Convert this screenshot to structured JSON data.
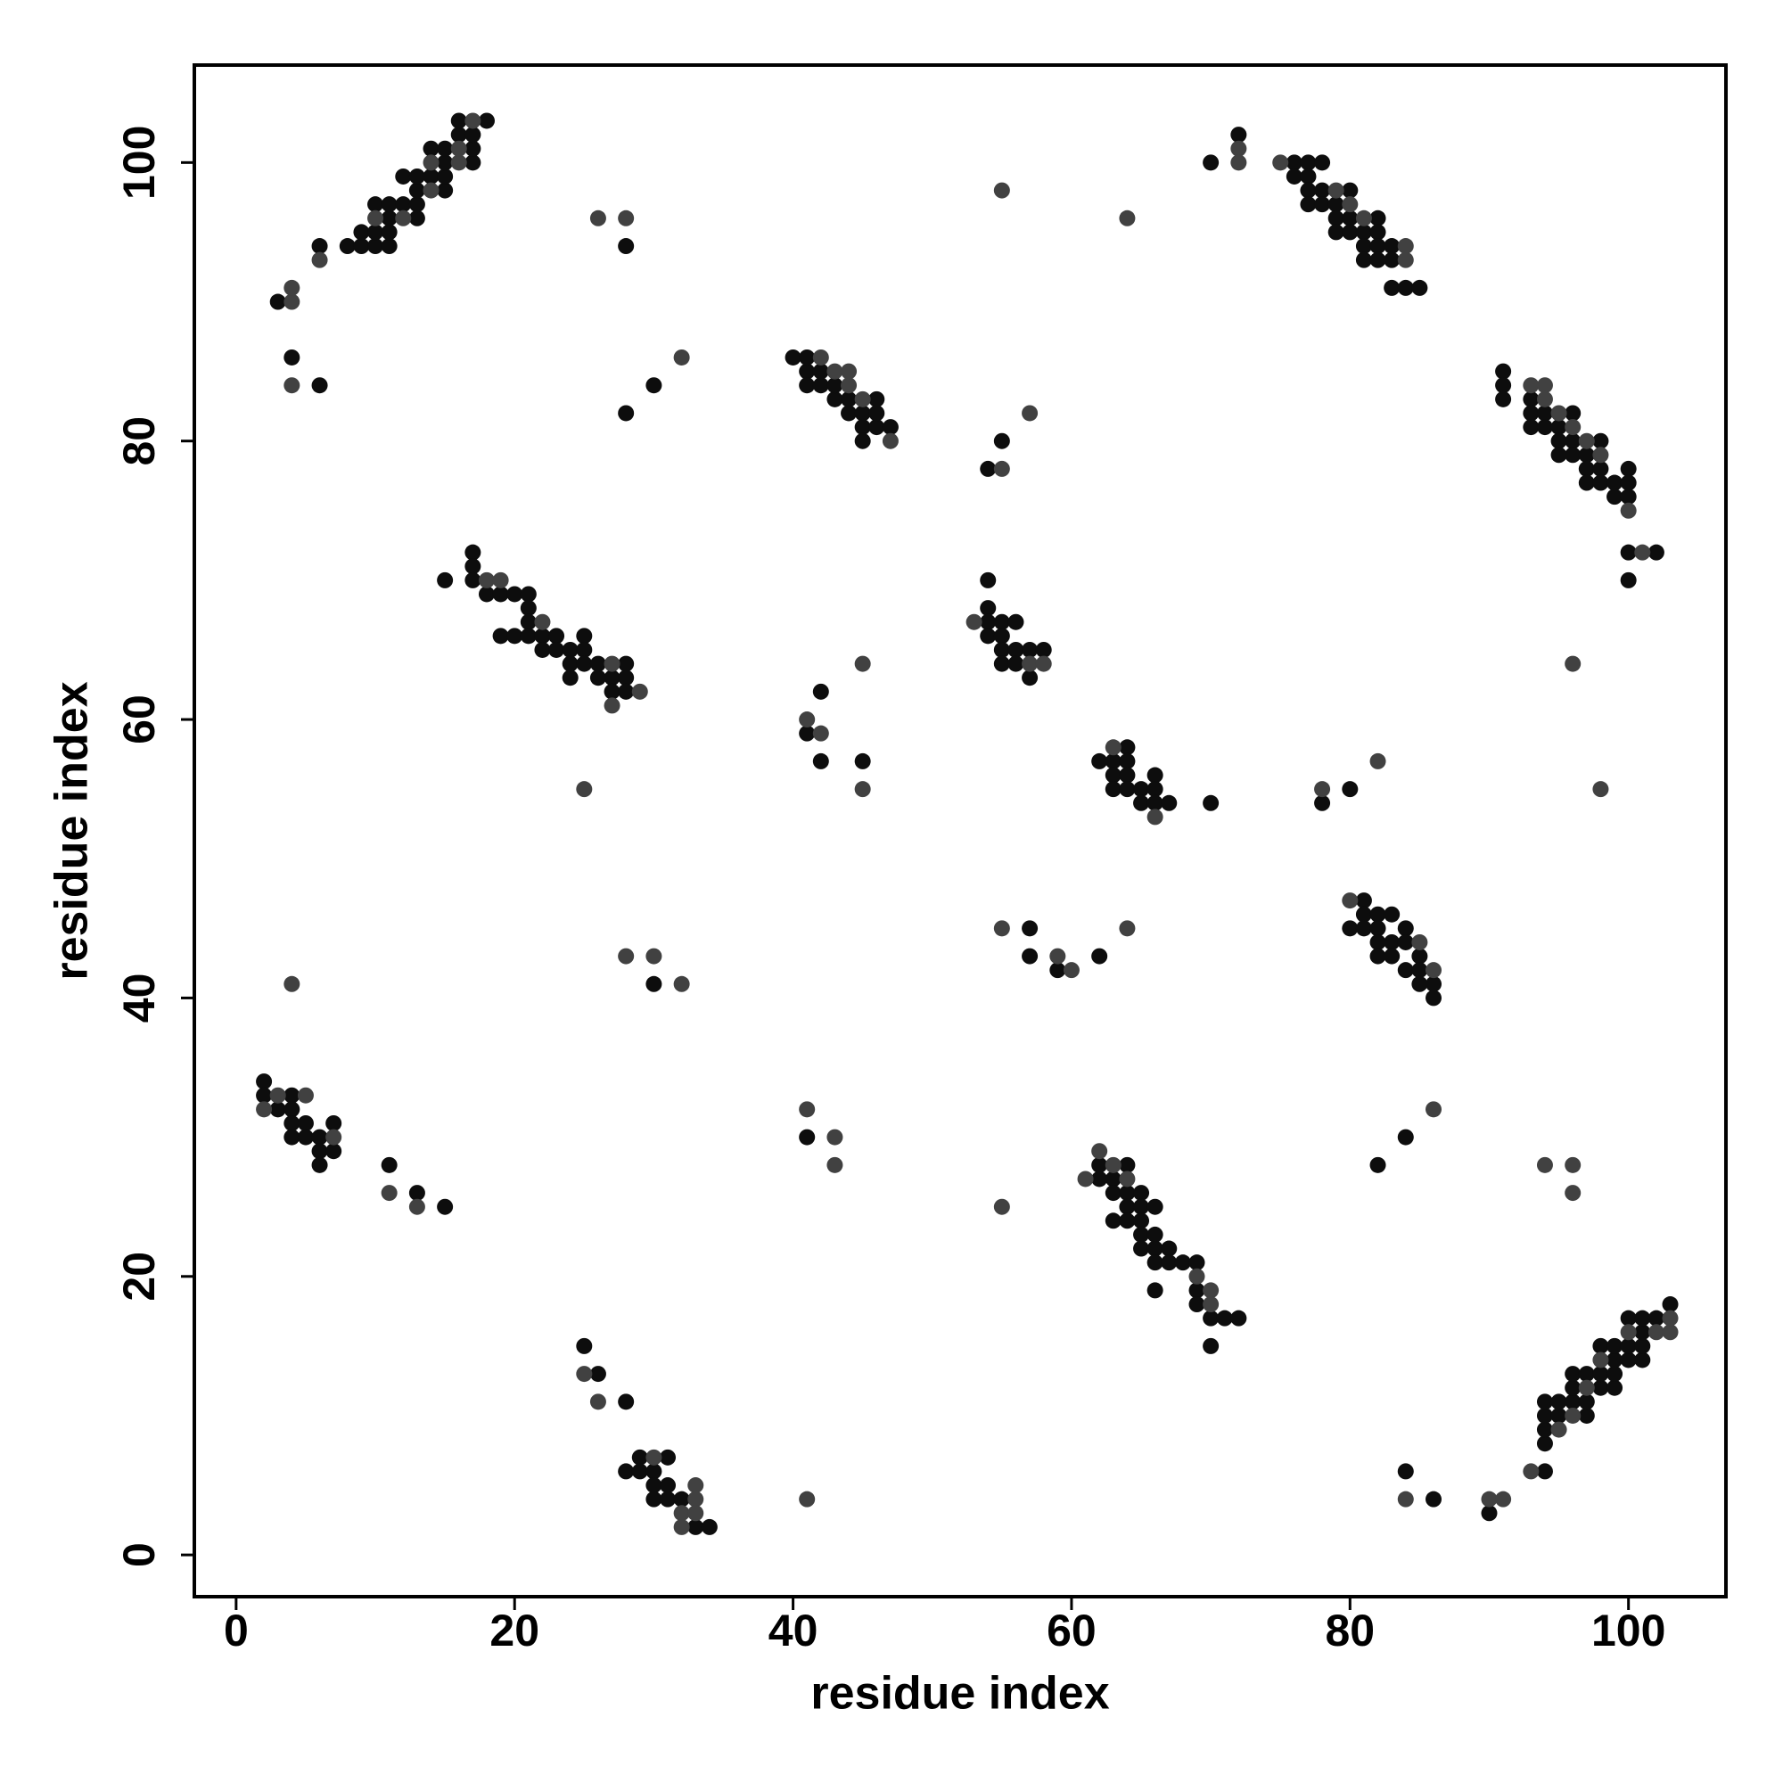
{
  "chart_data": {
    "type": "scatter",
    "x_label": "residue index",
    "y_label": "residue index",
    "xlim": [
      -3,
      107
    ],
    "ylim": [
      -3,
      107
    ],
    "xticks": [
      0,
      20,
      40,
      60,
      80,
      100
    ],
    "yticks": [
      0,
      20,
      40,
      60,
      80,
      100
    ],
    "series": [
      {
        "color": "#0d0d0d",
        "x": [
          3,
          6,
          8,
          9,
          9,
          10,
          10,
          10,
          11,
          11,
          11,
          11,
          12,
          12,
          13,
          13,
          13,
          13,
          14,
          14,
          15,
          15,
          15,
          15,
          16,
          16,
          17,
          17,
          17,
          18,
          4,
          6,
          28,
          28,
          30,
          40,
          41,
          41,
          41,
          42,
          42,
          43,
          43,
          44,
          44,
          45,
          45,
          46,
          46,
          46,
          45,
          47,
          55,
          54,
          70,
          72,
          76,
          76,
          77,
          77,
          77,
          77,
          78,
          78,
          78,
          79,
          79,
          79,
          80,
          80,
          80,
          81,
          81,
          81,
          82,
          82,
          82,
          82,
          83,
          83,
          83,
          84,
          85,
          91,
          91,
          91,
          93,
          93,
          93,
          94,
          94,
          95,
          95,
          95,
          96,
          96,
          96,
          97,
          97,
          97,
          98,
          98,
          98,
          99,
          99,
          100,
          100,
          100,
          100,
          100,
          102,
          15,
          17,
          17,
          17,
          18,
          19,
          19,
          20,
          20,
          21,
          21,
          21,
          21,
          22,
          22,
          23,
          23,
          24,
          24,
          24,
          25,
          25,
          25,
          26,
          26,
          27,
          27,
          28,
          28,
          28,
          41,
          42,
          42,
          45,
          54,
          54,
          54,
          54,
          55,
          55,
          55,
          55,
          56,
          56,
          56,
          57,
          57,
          58,
          62,
          63,
          63,
          63,
          64,
          64,
          64,
          64,
          65,
          65,
          66,
          66,
          66,
          67,
          70,
          78,
          80,
          80,
          81,
          81,
          81,
          82,
          82,
          82,
          82,
          83,
          83,
          83,
          84,
          84,
          84,
          85,
          85,
          85,
          86,
          86,
          57,
          57,
          59,
          62,
          30,
          2,
          2,
          3,
          4,
          4,
          4,
          4,
          5,
          5,
          6,
          6,
          6,
          7,
          7,
          11,
          13,
          15,
          41,
          62,
          62,
          63,
          63,
          63,
          64,
          64,
          64,
          64,
          65,
          65,
          65,
          65,
          65,
          66,
          66,
          66,
          66,
          66,
          67,
          67,
          68,
          69,
          69,
          69,
          70,
          70,
          71,
          72,
          84,
          82,
          94,
          94,
          94,
          94,
          94,
          95,
          95,
          96,
          96,
          96,
          97,
          97,
          97,
          98,
          98,
          98,
          99,
          99,
          99,
          99,
          100,
          100,
          100,
          101,
          101,
          101,
          101,
          102,
          103,
          84,
          86,
          90,
          25,
          26,
          28,
          28,
          29,
          29,
          30,
          30,
          30,
          31,
          31,
          31,
          32,
          33,
          34
        ],
        "values": [
          90,
          94,
          94,
          94,
          95,
          94,
          95,
          97,
          94,
          95,
          96,
          97,
          97,
          99,
          96,
          97,
          98,
          99,
          99,
          101,
          98,
          99,
          100,
          101,
          102,
          103,
          100,
          101,
          102,
          103,
          86,
          84,
          94,
          82,
          84,
          86,
          85,
          86,
          84,
          84,
          85,
          83,
          84,
          82,
          83,
          82,
          81,
          81,
          82,
          83,
          80,
          81,
          80,
          78,
          100,
          102,
          100,
          99,
          100,
          99,
          98,
          97,
          100,
          98,
          97,
          97,
          96,
          95,
          98,
          96,
          95,
          95,
          94,
          93,
          96,
          95,
          94,
          93,
          94,
          93,
          91,
          91,
          91,
          85,
          84,
          83,
          83,
          82,
          81,
          82,
          81,
          81,
          80,
          79,
          82,
          80,
          79,
          79,
          78,
          77,
          80,
          78,
          77,
          77,
          76,
          78,
          77,
          76,
          72,
          70,
          72,
          70,
          72,
          71,
          70,
          69,
          69,
          66,
          69,
          66,
          69,
          68,
          67,
          66,
          66,
          65,
          66,
          65,
          65,
          64,
          63,
          66,
          65,
          64,
          64,
          63,
          63,
          62,
          64,
          63,
          62,
          59,
          62,
          57,
          57,
          70,
          68,
          67,
          66,
          67,
          66,
          65,
          64,
          67,
          65,
          64,
          65,
          63,
          65,
          57,
          57,
          56,
          55,
          58,
          57,
          56,
          55,
          55,
          54,
          56,
          55,
          54,
          54,
          54,
          54,
          55,
          45,
          47,
          46,
          45,
          46,
          45,
          44,
          43,
          46,
          44,
          43,
          45,
          44,
          42,
          43,
          42,
          41,
          41,
          40,
          45,
          43,
          42,
          43,
          41,
          34,
          33,
          32,
          33,
          32,
          31,
          30,
          31,
          30,
          30,
          29,
          28,
          31,
          29,
          28,
          26,
          25,
          30,
          28,
          27,
          27,
          26,
          24,
          28,
          26,
          25,
          24,
          26,
          25,
          24,
          23,
          22,
          25,
          23,
          22,
          21,
          19,
          22,
          21,
          21,
          21,
          19,
          18,
          17,
          15,
          17,
          17,
          30,
          28,
          6,
          8,
          9,
          10,
          11,
          10,
          11,
          11,
          12,
          13,
          10,
          11,
          13,
          12,
          13,
          15,
          12,
          13,
          14,
          15,
          14,
          15,
          17,
          14,
          15,
          16,
          17,
          17,
          18,
          6,
          4,
          3,
          15,
          13,
          11,
          6,
          7,
          6,
          6,
          5,
          4,
          7,
          5,
          4,
          4,
          2,
          2
        ]
      },
      {
        "color": "#414141",
        "x": [
          4,
          4,
          6,
          10,
          12,
          14,
          14,
          16,
          16,
          17,
          4,
          26,
          28,
          32,
          42,
          43,
          44,
          44,
          45,
          47,
          55,
          64,
          55,
          57,
          72,
          72,
          75,
          79,
          80,
          81,
          84,
          84,
          93,
          94,
          94,
          95,
          96,
          97,
          98,
          100,
          101,
          18,
          19,
          22,
          27,
          27,
          29,
          25,
          41,
          42,
          45,
          45,
          53,
          57,
          58,
          96,
          63,
          66,
          78,
          82,
          98,
          80,
          85,
          86,
          55,
          59,
          60,
          64,
          4,
          28,
          30,
          32,
          2,
          3,
          5,
          7,
          11,
          13,
          41,
          43,
          43,
          55,
          61,
          62,
          63,
          64,
          69,
          70,
          70,
          86,
          94,
          96,
          96,
          93,
          95,
          96,
          97,
          98,
          100,
          102,
          103,
          103,
          84,
          90,
          91,
          41,
          25,
          26,
          30,
          32,
          32,
          33,
          33,
          33
        ],
        "values": [
          90,
          91,
          93,
          96,
          96,
          98,
          100,
          100,
          101,
          103,
          84,
          96,
          96,
          86,
          86,
          85,
          84,
          85,
          83,
          80,
          98,
          96,
          78,
          82,
          101,
          100,
          100,
          98,
          97,
          96,
          94,
          93,
          84,
          84,
          83,
          82,
          81,
          80,
          79,
          75,
          72,
          70,
          70,
          67,
          64,
          61,
          62,
          55,
          60,
          59,
          64,
          55,
          67,
          64,
          64,
          64,
          58,
          53,
          55,
          57,
          55,
          47,
          44,
          42,
          45,
          43,
          42,
          45,
          41,
          43,
          43,
          41,
          32,
          33,
          33,
          30,
          26,
          25,
          32,
          30,
          28,
          25,
          27,
          29,
          28,
          27,
          20,
          19,
          18,
          32,
          28,
          28,
          26,
          6,
          9,
          10,
          12,
          14,
          16,
          16,
          16,
          17,
          4,
          4,
          4,
          4,
          13,
          11,
          7,
          3,
          2,
          5,
          4,
          3
        ]
      }
    ]
  }
}
